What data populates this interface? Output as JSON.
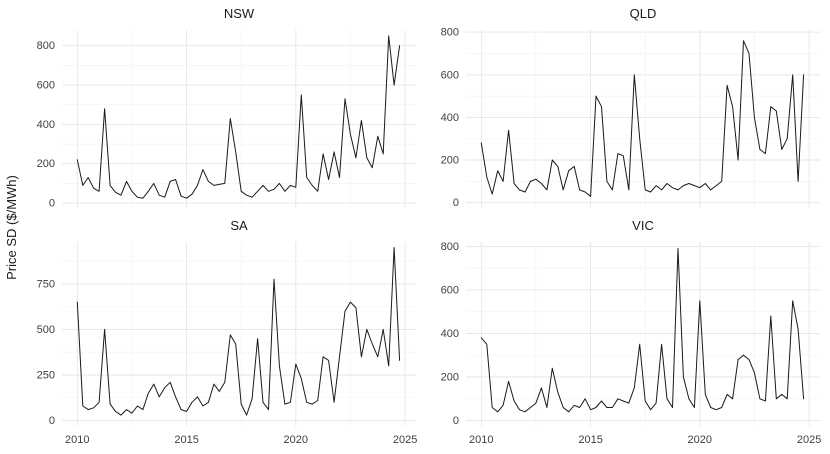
{
  "figure": {
    "ylabel": "Price SD ($/MWh)",
    "line_color": "#1a1a1a",
    "grid_major": "#e6e6e6",
    "grid_minor": "#f3f3f3",
    "tick_color": "#404040",
    "background": "#ffffff"
  },
  "chart_data": [
    {
      "type": "line",
      "title": "NSW",
      "xlabel": "",
      "ylabel": "Price SD ($/MWh)",
      "x_start": 2010,
      "x_step": 0.25,
      "xlim": [
        2009.3,
        2025.5
      ],
      "ylim": [
        -25,
        880
      ],
      "x_ticks": [
        2010,
        2015,
        2020,
        2025
      ],
      "y_ticks": [
        0,
        200,
        400,
        600,
        800
      ],
      "show_x_axis": false,
      "values": [
        220,
        90,
        130,
        75,
        60,
        480,
        90,
        55,
        40,
        110,
        60,
        30,
        25,
        60,
        100,
        40,
        30,
        110,
        120,
        35,
        25,
        45,
        90,
        170,
        110,
        90,
        95,
        100,
        430,
        260,
        60,
        40,
        30,
        60,
        90,
        60,
        70,
        100,
        60,
        90,
        80,
        550,
        130,
        90,
        60,
        250,
        120,
        260,
        130,
        530,
        350,
        230,
        420,
        230,
        180,
        340,
        250,
        850,
        600,
        800
      ]
    },
    {
      "type": "line",
      "title": "QLD",
      "xlabel": "",
      "ylabel": "Price SD ($/MWh)",
      "x_start": 2010,
      "x_step": 0.25,
      "xlim": [
        2009.3,
        2025.5
      ],
      "ylim": [
        -25,
        810
      ],
      "x_ticks": [
        2010,
        2015,
        2020,
        2025
      ],
      "y_ticks": [
        0,
        200,
        400,
        600,
        800
      ],
      "show_x_axis": false,
      "values": [
        280,
        120,
        40,
        150,
        100,
        340,
        90,
        60,
        50,
        100,
        110,
        90,
        60,
        200,
        170,
        60,
        150,
        170,
        60,
        50,
        30,
        500,
        450,
        100,
        60,
        230,
        220,
        60,
        600,
        300,
        60,
        50,
        80,
        60,
        90,
        70,
        60,
        80,
        90,
        80,
        70,
        90,
        60,
        80,
        100,
        550,
        450,
        200,
        760,
        700,
        400,
        250,
        230,
        450,
        430,
        250,
        300,
        600,
        100,
        600
      ]
    },
    {
      "type": "line",
      "title": "SA",
      "xlabel": "",
      "ylabel": "Price SD ($/MWh)",
      "x_start": 2010,
      "x_step": 0.25,
      "xlim": [
        2009.3,
        2025.5
      ],
      "ylim": [
        -30,
        980
      ],
      "x_ticks": [
        2010,
        2015,
        2020,
        2025
      ],
      "y_ticks": [
        0,
        250,
        500,
        750
      ],
      "show_x_axis": true,
      "values": [
        650,
        80,
        60,
        70,
        100,
        500,
        90,
        50,
        30,
        60,
        40,
        80,
        60,
        150,
        200,
        130,
        180,
        210,
        130,
        60,
        50,
        100,
        130,
        80,
        100,
        200,
        160,
        210,
        470,
        420,
        90,
        30,
        120,
        450,
        100,
        60,
        775,
        300,
        90,
        100,
        310,
        230,
        100,
        90,
        110,
        350,
        330,
        100,
        350,
        600,
        650,
        620,
        350,
        500,
        420,
        350,
        500,
        300,
        950,
        330
      ]
    },
    {
      "type": "line",
      "title": "VIC",
      "xlabel": "",
      "ylabel": "Price SD ($/MWh)",
      "x_start": 2010,
      "x_step": 0.25,
      "xlim": [
        2009.3,
        2025.5
      ],
      "ylim": [
        -25,
        820
      ],
      "x_ticks": [
        2010,
        2015,
        2020,
        2025
      ],
      "y_ticks": [
        0,
        200,
        400,
        600,
        800
      ],
      "show_x_axis": true,
      "values": [
        380,
        350,
        60,
        40,
        70,
        180,
        90,
        50,
        40,
        60,
        80,
        150,
        60,
        240,
        130,
        60,
        40,
        70,
        60,
        100,
        50,
        60,
        90,
        60,
        60,
        100,
        90,
        80,
        150,
        350,
        90,
        50,
        80,
        350,
        100,
        60,
        790,
        200,
        100,
        60,
        550,
        120,
        60,
        50,
        60,
        120,
        100,
        280,
        300,
        280,
        220,
        100,
        90,
        480,
        100,
        120,
        100,
        550,
        420,
        100
      ]
    }
  ]
}
